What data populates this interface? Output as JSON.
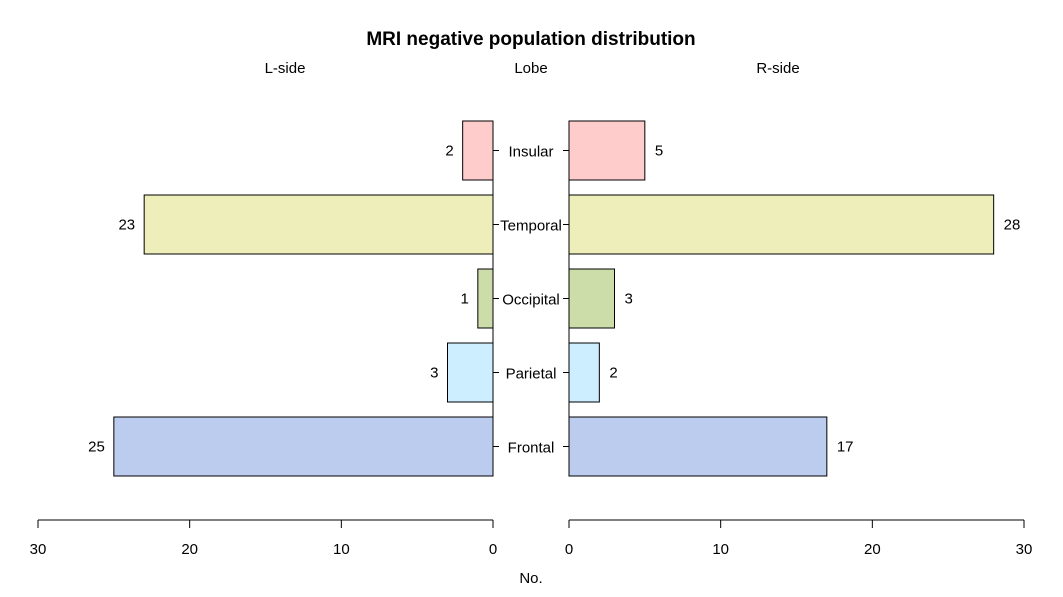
{
  "chart_data": {
    "type": "bar",
    "orientation": "horizontal",
    "layout": "population-pyramid",
    "title": "MRI negative population distribution",
    "center_label": "Lobe",
    "xlabel": "No.",
    "xlim": [
      0,
      30
    ],
    "ticks": [
      0,
      10,
      20,
      30
    ],
    "categories": [
      "Insular",
      "Temporal",
      "Occipital",
      "Parietal",
      "Frontal"
    ],
    "colors": [
      "#ffcccc",
      "#eeeebb",
      "#ccddaa",
      "#cceeff",
      "#bbccee"
    ],
    "series": [
      {
        "name": "L-side",
        "side": "left",
        "values": [
          2,
          23,
          1,
          3,
          25
        ]
      },
      {
        "name": "R-side",
        "side": "right",
        "values": [
          5,
          28,
          3,
          2,
          17
        ]
      }
    ]
  }
}
